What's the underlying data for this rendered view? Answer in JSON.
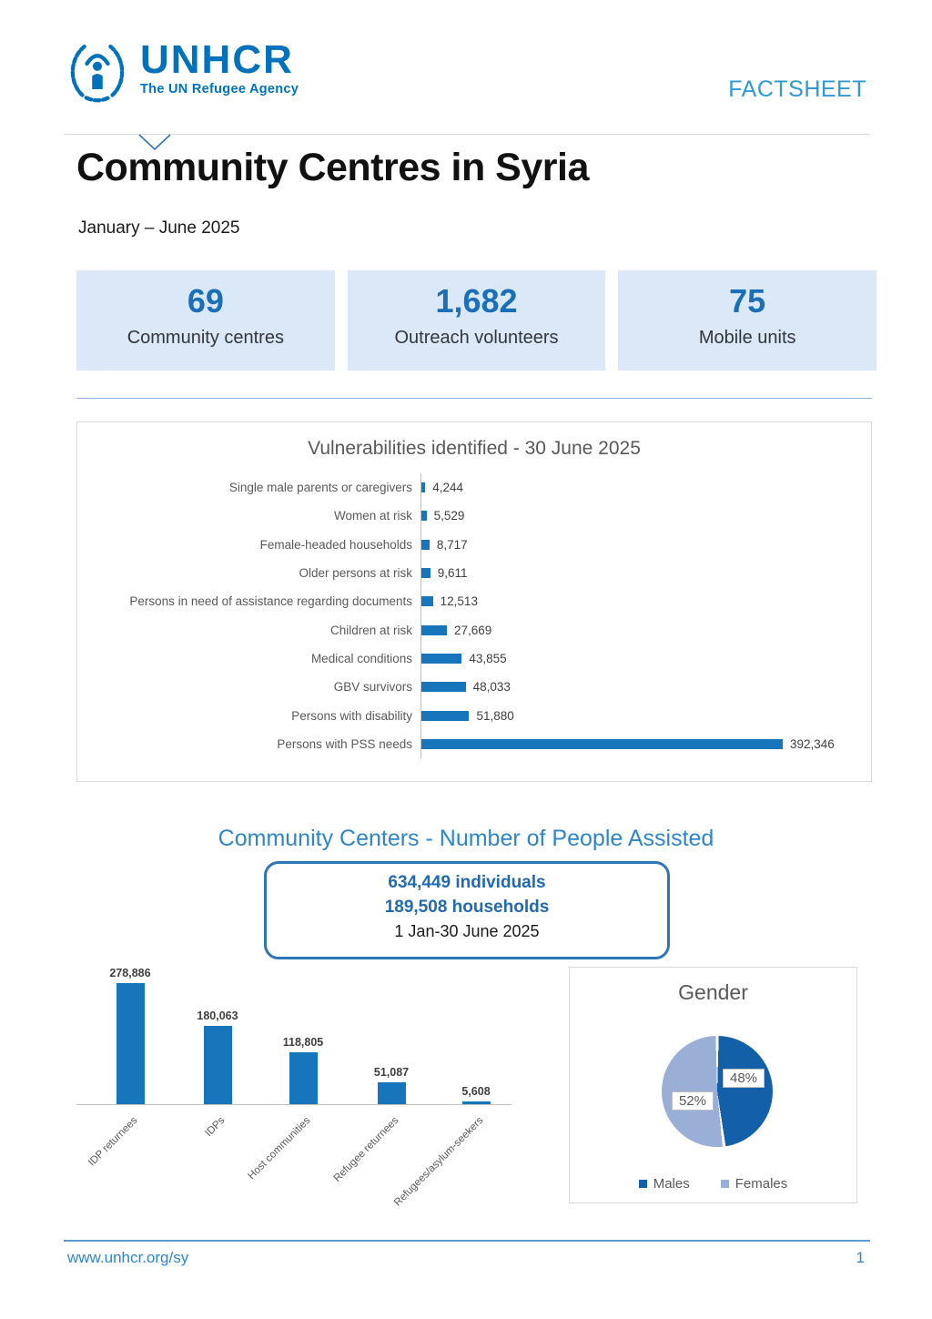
{
  "colors": {
    "unhcr_blue": "#0072BC",
    "bar_blue": "#1775BC",
    "stat_bg": "#DBE8F7",
    "pie_males": "#135FA8",
    "pie_females": "#9AAFD6",
    "accent_title": "#2E86C9"
  },
  "header": {
    "brand": "UNHCR",
    "tagline": "The UN Refugee Agency",
    "factsheet": "FACTSHEET"
  },
  "title_block": {
    "title": "Community Centres in Syria",
    "period": "January – June 2025"
  },
  "stats": [
    {
      "value": "69",
      "label": "Community centres"
    },
    {
      "value": "1,682",
      "label": "Outreach volunteers"
    },
    {
      "value": "75",
      "label": "Mobile units"
    }
  ],
  "assisted_callout": {
    "individuals_line": "634,449  individuals",
    "households_line": "189,508 households",
    "period_line": "1 Jan-30 June 2025"
  },
  "footer": {
    "url": "www.unhcr.org/sy",
    "page": "1"
  },
  "chart_data": [
    {
      "type": "bar",
      "orientation": "horizontal",
      "title": "Vulnerabilities identified - 30 June 2025",
      "categories": [
        "Single male parents or caregivers",
        "Women at risk",
        "Female-headed households",
        "Older persons at risk",
        "Persons in need of assistance regarding documents",
        "Children at risk",
        "Medical conditions",
        "GBV survivors",
        "Persons with disability",
        "Persons with PSS needs"
      ],
      "values": [
        4244,
        5529,
        8717,
        9611,
        12513,
        27669,
        43855,
        48033,
        51880,
        392346
      ],
      "value_labels": [
        "4,244",
        "5,529",
        "8,717",
        "9,611",
        "12,513",
        "27,669",
        "43,855",
        "48,033",
        "51,880",
        "392,346"
      ],
      "xlim": [
        0,
        400000
      ],
      "bar_color": "#1775BC",
      "grid": false,
      "legend": "none"
    },
    {
      "type": "bar",
      "orientation": "vertical",
      "title": "Community Centers - Number of People Assisted",
      "categories": [
        "IDP returnees",
        "IDPs",
        "Host communities",
        "Refugee returnees",
        "Refugees/asylum-seekers"
      ],
      "values": [
        278886,
        180063,
        118805,
        51087,
        5608
      ],
      "value_labels": [
        "278,886",
        "180,063",
        "118,805",
        "51,087",
        "5,608"
      ],
      "ylim": [
        0,
        300000
      ],
      "bar_color": "#1775BC",
      "grid": false,
      "legend": "none"
    },
    {
      "type": "pie",
      "title": "Gender",
      "slices": [
        {
          "label": "Males",
          "pct": 48,
          "display": "48%",
          "color": "#135FA8"
        },
        {
          "label": "Females",
          "pct": 52,
          "display": "52%",
          "color": "#9AAFD6"
        }
      ],
      "legend": "bottom"
    }
  ]
}
